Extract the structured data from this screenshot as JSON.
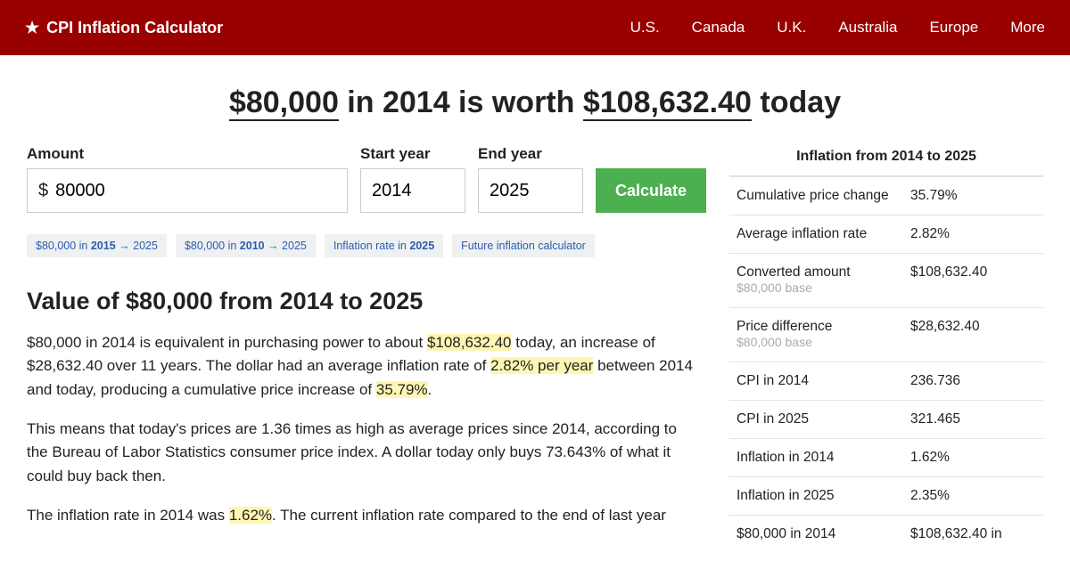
{
  "header": {
    "brand": "CPI Inflation Calculator",
    "nav": [
      "U.S.",
      "Canada",
      "U.K.",
      "Australia",
      "Europe",
      "More"
    ]
  },
  "title": {
    "amount": "$80,000",
    "mid": " in 2014 is worth ",
    "result": "$108,632.40",
    "end": " today"
  },
  "form": {
    "amount_label": "Amount",
    "amount_value": "80000",
    "start_label": "Start year",
    "start_value": "2014",
    "end_label": "End year",
    "end_value": "2025",
    "button": "Calculate"
  },
  "chips": [
    {
      "pre": "$80,000 in ",
      "bold": "2015",
      "post": " → 2025"
    },
    {
      "pre": "$80,000 in ",
      "bold": "2010",
      "post": " → 2025"
    },
    {
      "pre": "Inflation rate in ",
      "bold": "2025",
      "post": ""
    },
    {
      "pre": "Future inflation calculator",
      "bold": "",
      "post": ""
    }
  ],
  "section_heading": "Value of $80,000 from 2014 to 2025",
  "p1": {
    "a": "$80,000 in 2014 is equivalent in purchasing power to about ",
    "h1": "$108,632.40",
    "b": " today, an increase of $28,632.40 over 11 years. The dollar had an average inflation rate of ",
    "h2": "2.82% per year",
    "c": " between 2014 and today, producing a cumulative price increase of ",
    "h3": "35.79%",
    "d": "."
  },
  "p2": "This means that today's prices are 1.36 times as high as average prices since 2014, according to the Bureau of Labor Statistics consumer price index. A dollar today only buys 73.643% of what it could buy back then.",
  "p3": {
    "a": "The inflation rate in 2014 was ",
    "h1": "1.62%",
    "b": ". The current inflation rate compared to the end of last year"
  },
  "infobox": {
    "title": "Inflation from 2014 to 2025",
    "rows": [
      {
        "k": "Cumulative price change",
        "sub": "",
        "v": "35.79%"
      },
      {
        "k": "Average inflation rate",
        "sub": "",
        "v": "2.82%"
      },
      {
        "k": "Converted amount",
        "sub": "$80,000 base",
        "v": "$108,632.40"
      },
      {
        "k": "Price difference",
        "sub": "$80,000 base",
        "v": "$28,632.40"
      },
      {
        "k": "CPI in 2014",
        "sub": "",
        "v": "236.736"
      },
      {
        "k": "CPI in 2025",
        "sub": "",
        "v": "321.465"
      },
      {
        "k": "Inflation in 2014",
        "sub": "",
        "v": "1.62%"
      },
      {
        "k": "Inflation in 2025",
        "sub": "",
        "v": "2.35%"
      },
      {
        "k": "$80,000 in 2014",
        "sub": "",
        "v": "$108,632.40 in"
      }
    ]
  }
}
